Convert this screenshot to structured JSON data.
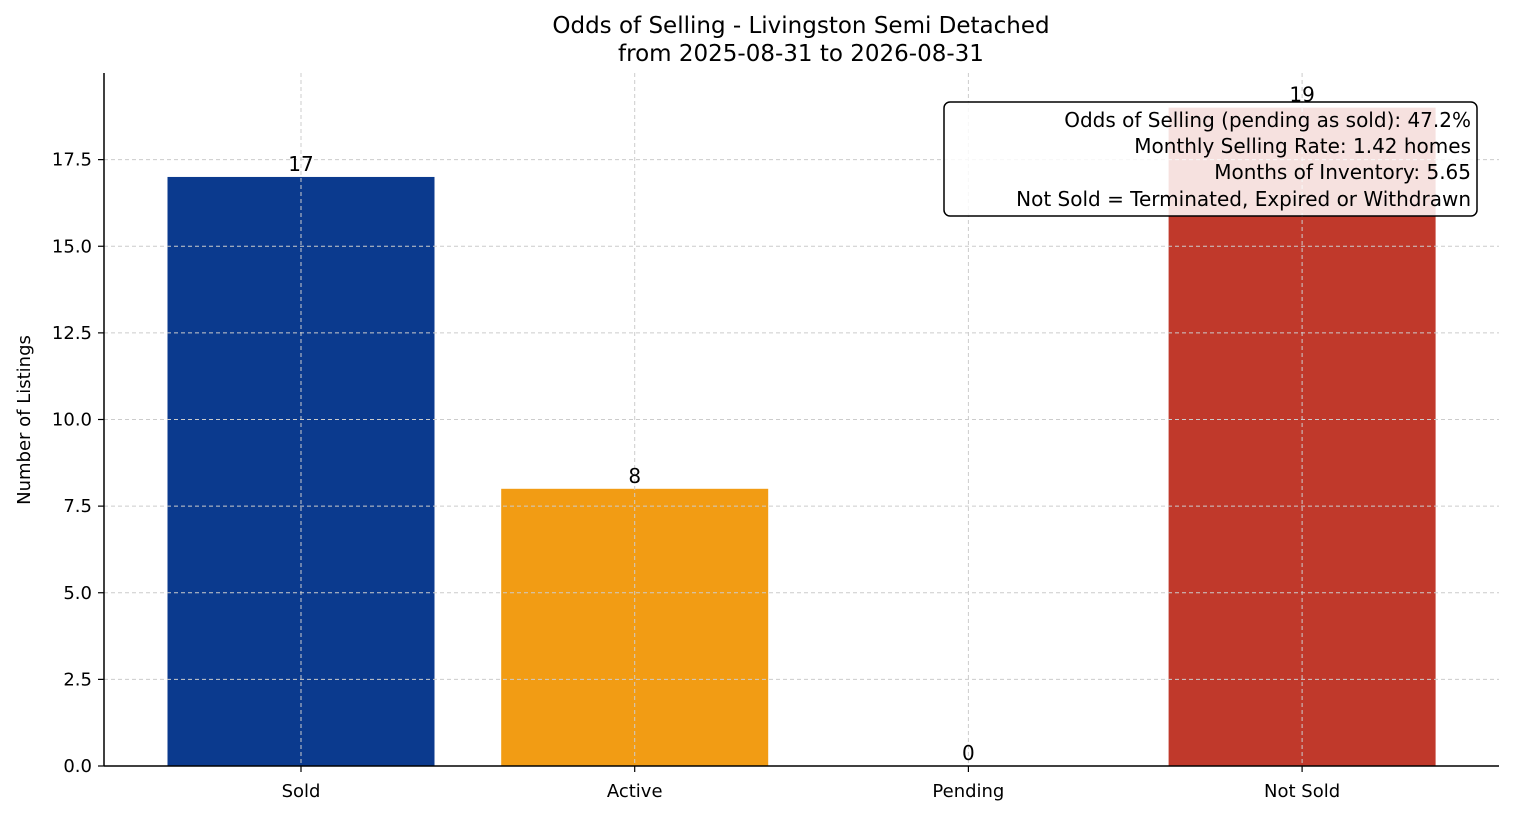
{
  "chart_data": {
    "type": "bar",
    "title": "Odds of Selling - Livingston Semi Detached",
    "subtitle": "from 2025-08-31 to 2026-08-31",
    "xlabel": "",
    "ylabel": "Number of Listings",
    "categories": [
      "Sold",
      "Active",
      "Pending",
      "Not Sold"
    ],
    "values": [
      17,
      8,
      0,
      19
    ],
    "data_labels": [
      "17",
      "8",
      "0",
      "19"
    ],
    "colors": [
      "#0b3a8e",
      "#f29c14",
      "#7f7f7f",
      "#c0392b"
    ],
    "ylim": [
      0,
      20
    ],
    "yticks": [
      0.0,
      2.5,
      5.0,
      7.5,
      10.0,
      12.5,
      15.0,
      17.5
    ],
    "ytick_labels": [
      "0.0",
      "2.5",
      "5.0",
      "7.5",
      "10.0",
      "12.5",
      "15.0",
      "17.5"
    ],
    "grid": true,
    "annotation": {
      "placement": "top-right",
      "lines": [
        "Odds of Selling (pending as sold): 47.2%",
        "Monthly Selling Rate: 1.42 homes",
        "Months of Inventory: 5.65",
        "Not Sold = Terminated, Expired or Withdrawn"
      ]
    }
  }
}
